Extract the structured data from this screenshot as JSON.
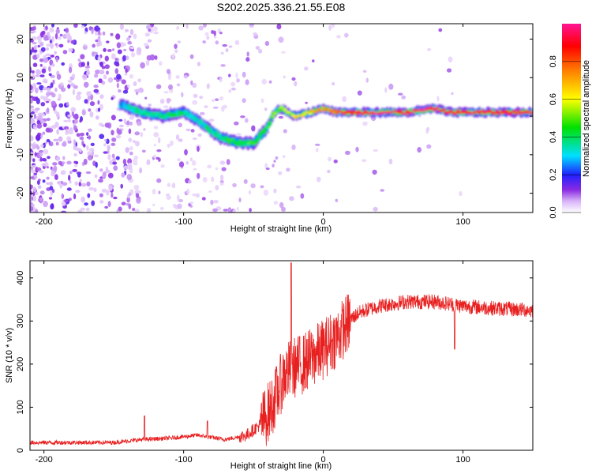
{
  "title": "S202.2025.336.21.55.E08",
  "chart_data": [
    {
      "type": "heatmap",
      "xlabel": "Height of straight line (km)",
      "ylabel": "Frequency (Hz)",
      "xlim": [
        -210,
        150
      ],
      "ylim": [
        -25,
        24
      ],
      "x_ticks": [
        -200,
        -100,
        0,
        100
      ],
      "x_tick_labels": [
        "-200",
        "-100",
        "0",
        "100"
      ],
      "y_ticks": [
        -20,
        -10,
        0,
        10,
        20
      ],
      "y_tick_labels": [
        "-20",
        "-10",
        "0",
        "10",
        "20"
      ],
      "colorbar": {
        "label": "Normalized spectral amplitude",
        "range": [
          0,
          1
        ],
        "ticks": [
          0,
          0.2,
          0.4,
          0.6,
          0.8
        ],
        "tick_labels": [
          "0.0",
          "0.2",
          "0.4",
          "0.6",
          "0.8"
        ],
        "colors": [
          "#ffffff",
          "#d8b4f8",
          "#8a2be2",
          "#2020ff",
          "#00e0ff",
          "#00e000",
          "#ffff00",
          "#ff8000",
          "#ff0000",
          "#ff1493"
        ]
      },
      "ridge": {
        "x": [
          -145,
          -130,
          -115,
          -100,
          -90,
          -80,
          -70,
          -60,
          -50,
          -40,
          -35,
          -30,
          -25,
          -20,
          -10,
          0,
          10,
          20,
          40,
          60,
          80,
          90,
          100,
          120,
          150
        ],
        "frequency": [
          3,
          1,
          0,
          1,
          -1,
          -4,
          -6,
          -7,
          -7,
          -3,
          1,
          2,
          1,
          0,
          1,
          2,
          1,
          1,
          1,
          1,
          2,
          1,
          1,
          1,
          1
        ],
        "amplitude": [
          0.3,
          0.35,
          0.4,
          0.35,
          0.35,
          0.35,
          0.4,
          0.45,
          0.45,
          0.45,
          0.5,
          0.55,
          0.6,
          0.6,
          0.65,
          0.75,
          0.8,
          0.85,
          0.95,
          0.95,
          0.95,
          0.9,
          0.9,
          0.9,
          0.9
        ]
      }
    },
    {
      "type": "line",
      "xlabel": "Height of straight line (km)",
      "ylabel": "SNR (10 * v/v)",
      "xlim": [
        -210,
        150
      ],
      "ylim": [
        0,
        440
      ],
      "x_ticks": [
        -200,
        -100,
        0,
        100
      ],
      "x_tick_labels": [
        "-200",
        "-100",
        "0",
        "100"
      ],
      "y_ticks": [
        0,
        100,
        200,
        300,
        400
      ],
      "y_tick_labels": [
        "0",
        "100",
        "200",
        "300",
        "400"
      ],
      "series": [
        {
          "name": "SNR",
          "color": "#e82020",
          "trend_x": [
            -210,
            -150,
            -130,
            -110,
            -90,
            -70,
            -55,
            -45,
            -38,
            -32,
            -28,
            -22,
            -15,
            -8,
            0,
            10,
            15,
            20,
            25,
            30,
            40,
            60,
            80,
            100,
            120,
            150
          ],
          "trend_y": [
            18,
            18,
            25,
            28,
            35,
            25,
            35,
            60,
            95,
            140,
            175,
            190,
            200,
            215,
            235,
            265,
            285,
            305,
            318,
            325,
            335,
            345,
            345,
            335,
            330,
            325
          ],
          "spikes": [
            {
              "x": -128,
              "y": 80
            },
            {
              "x": -83,
              "y": 68
            },
            {
              "x": -23,
              "y": 435
            },
            {
              "x": 94,
              "y": 235
            }
          ]
        }
      ]
    }
  ]
}
